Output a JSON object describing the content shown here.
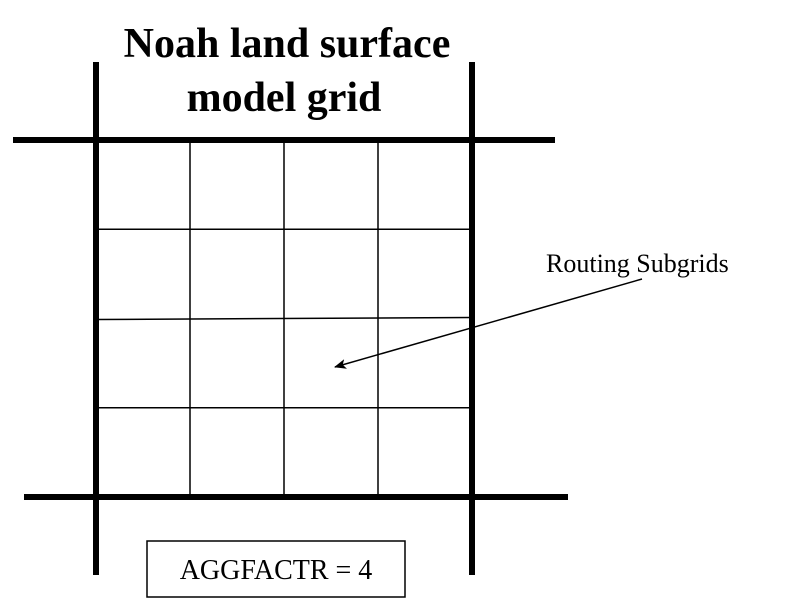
{
  "title": {
    "line1": "Noah land surface",
    "line2": "model grid"
  },
  "subgrid_label": "Routing Subgrids",
  "aggfactr_label": "AGGFACTR = 4",
  "grid": {
    "subgrid_rows": 4,
    "subgrid_cols": 4
  },
  "colors": {
    "line": "#000000",
    "background": "#ffffff"
  }
}
